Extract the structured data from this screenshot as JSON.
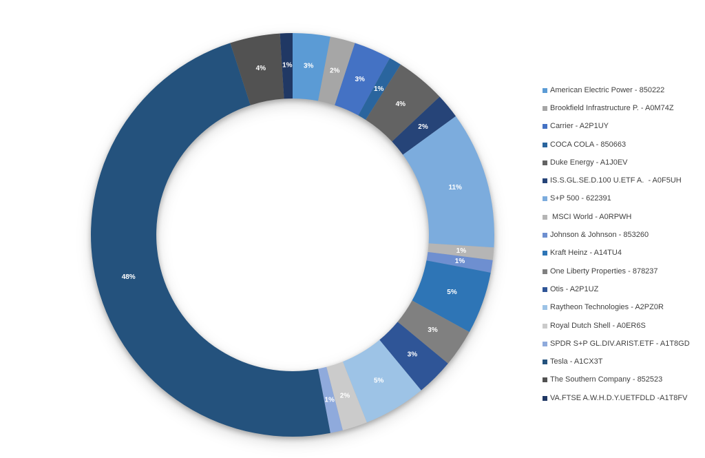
{
  "chart_data": {
    "type": "pie",
    "subtype": "donut",
    "title": "",
    "hole_ratio": 0.675,
    "start_angle_deg": 0,
    "direction": "clockwise",
    "data_labels": "percent",
    "data_label_color": "#FFFFFF",
    "legend_position": "right",
    "background_color": "#FFFFFF",
    "segments": [
      {
        "label": "American Electric Power - 850222",
        "value": 3,
        "percent_label": "3%",
        "color": "#5B9BD5"
      },
      {
        "label": "Brookfield Infrastructure P. - A0M74Z",
        "value": 2,
        "percent_label": "2%",
        "color": "#A6A6A6"
      },
      {
        "label": "Carrier - A2P1UY",
        "value": 3,
        "percent_label": "3%",
        "color": "#4472C4"
      },
      {
        "label": "COCA COLA - 850663",
        "value": 1,
        "percent_label": "1%",
        "color": "#2A659E"
      },
      {
        "label": "Duke Energy - A1J0EV",
        "value": 4,
        "percent_label": "4%",
        "color": "#636363"
      },
      {
        "label": "IS.S.GL.SE.D.100 U.ETF A.  - A0F5UH",
        "value": 2,
        "percent_label": "2%",
        "color": "#264478"
      },
      {
        "label": "S+P 500 - 622391",
        "value": 11,
        "percent_label": "11%",
        "color": "#7CACDD"
      },
      {
        "label": " MSCI World - A0RPWH",
        "value": 1,
        "percent_label": "1%",
        "color": "#B5B5B5"
      },
      {
        "label": "Johnson & Johnson - 853260",
        "value": 1,
        "percent_label": "1%",
        "color": "#6E8FD0"
      },
      {
        "label": "Kraft Heinz - A14TU4",
        "value": 5,
        "percent_label": "5%",
        "color": "#2E75B6"
      },
      {
        "label": "One Liberty Properties - 878237",
        "value": 3,
        "percent_label": "3%",
        "color": "#808080"
      },
      {
        "label": "Otis - A2P1UZ",
        "value": 3,
        "percent_label": "3%",
        "color": "#2F5597"
      },
      {
        "label": "Raytheon Technologies - A2PZ0R",
        "value": 5,
        "percent_label": "5%",
        "color": "#9DC3E6"
      },
      {
        "label": "Royal Dutch Shell - A0ER6S",
        "value": 2,
        "percent_label": "2%",
        "color": "#CBCBCB"
      },
      {
        "label": "SPDR S+P GL.DIV.ARIST.ETF - A1T8GD",
        "value": 1,
        "percent_label": "1%",
        "color": "#8FAADC"
      },
      {
        "label": "Tesla - A1CX3T",
        "value": 48,
        "percent_label": "48%",
        "color": "#24527D"
      },
      {
        "label": "The Southern Company - 852523",
        "value": 4,
        "percent_label": "4%",
        "color": "#525252"
      },
      {
        "label": "VA.FTSE A.W.H.D.Y.UETFDLD -A1T8FV",
        "value": 1,
        "percent_label": "1%",
        "color": "#203864"
      }
    ]
  }
}
